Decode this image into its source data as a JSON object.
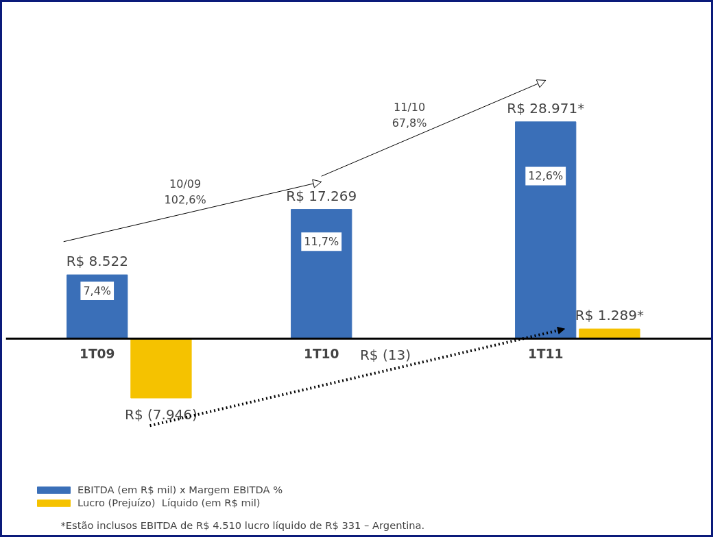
{
  "chart_data": {
    "type": "bar",
    "categories": [
      "1T09",
      "1T10",
      "1T11"
    ],
    "series": [
      {
        "name": "EBITDA (em R$ mil) x Margem EBITDA %",
        "color": "#3a6fb8",
        "values": [
          8522,
          17269,
          28971
        ],
        "value_labels": [
          "R$ 8.522",
          "R$ 17.269",
          "R$ 28.971*"
        ]
      },
      {
        "name": "Lucro (Prejuízo)  Líquido (em R$ mil)",
        "color": "#f5c200",
        "values": [
          -7946,
          -13,
          1289
        ],
        "value_labels": [
          "R$ (7.946)",
          "R$ (13)",
          "R$ 1.289*"
        ]
      }
    ],
    "annotations": [
      "7,4%",
      "11,7%",
      "12,6%",
      "10/09\n102,6%",
      "11/10\n67,8%",
      "*Estão inclusos EBITDA de R$ 4.510 lucro líquido de R$ 331 – Argentina."
    ],
    "legend": "bottom"
  }
}
